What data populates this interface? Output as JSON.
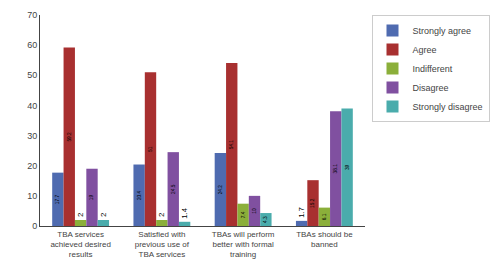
{
  "chart_data": {
    "type": "bar",
    "categories": [
      "TBA services\nachieved desired\nresults",
      "Satisfied with\nprevious use of\nTBA services",
      "TBAs will perform\nbetter with formal\ntraining",
      "TBAs should be\nbanned"
    ],
    "series": [
      {
        "name": "Strongly agree",
        "color": "#4F6BB0",
        "values": [
          17.7,
          20.4,
          24.2,
          1.7
        ],
        "value_labels": [
          "17.7",
          "20.4",
          "24.2",
          "1.7"
        ]
      },
      {
        "name": "Agree",
        "color": "#A83030",
        "values": [
          59.2,
          51.0,
          54.1,
          15.2
        ],
        "value_labels": [
          "59.2",
          "51",
          "54.1",
          "15.2"
        ]
      },
      {
        "name": "Indifferent",
        "color": "#8BAF3A",
        "values": [
          2.0,
          2.0,
          7.4,
          6.1
        ],
        "value_labels": [
          "2",
          "2",
          "7.4",
          "6.1"
        ]
      },
      {
        "name": "Disagree",
        "color": "#8050A0",
        "values": [
          19.0,
          24.5,
          10.0,
          38.1
        ],
        "value_labels": [
          "19",
          "24.5",
          "10",
          "38.1"
        ]
      },
      {
        "name": "Strongly disagree",
        "color": "#4AACAC",
        "values": [
          2.0,
          1.4,
          4.3,
          39.0
        ],
        "value_labels": [
          "2",
          "1.4",
          "4.3",
          "39"
        ]
      }
    ],
    "ylim": [
      0,
      70
    ],
    "yticks": [
      0,
      10,
      20,
      30,
      40,
      50,
      60,
      70
    ],
    "grid": false,
    "legend": "right",
    "data_labels": true
  }
}
